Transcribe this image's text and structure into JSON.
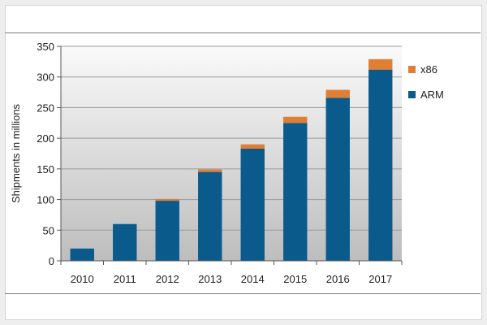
{
  "chart_data": {
    "type": "bar",
    "stacked": true,
    "categories": [
      "2010",
      "2011",
      "2012",
      "2013",
      "2014",
      "2015",
      "2016",
      "2017"
    ],
    "series": [
      {
        "name": "ARM",
        "values": [
          20,
          60,
          98,
          145,
          183,
          225,
          266,
          312
        ],
        "color": "#0a5a8c"
      },
      {
        "name": "x86",
        "values": [
          0,
          0,
          3,
          4,
          7,
          10,
          13,
          17
        ],
        "color": "#e07f33"
      }
    ],
    "ylabel": "Shipments  in millions",
    "xlabel": "",
    "ylim": [
      0,
      350
    ],
    "yticks": [
      0,
      50,
      100,
      150,
      200,
      250,
      300,
      350
    ],
    "grid": true,
    "legend_position": "right",
    "legend_order": [
      "x86",
      "ARM"
    ]
  }
}
